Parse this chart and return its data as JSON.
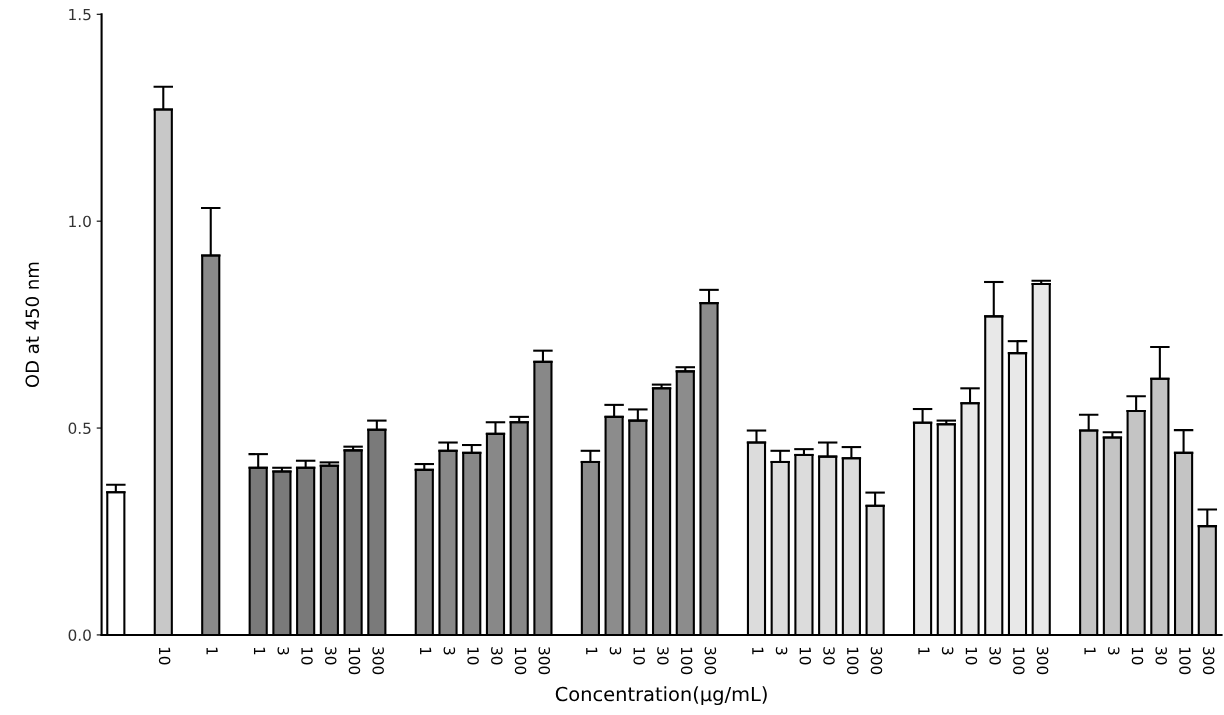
{
  "chart_data": {
    "type": "bar",
    "xlabel": "Concentration(μg/mL)",
    "ylabel": "OD at 450 nm",
    "categories": [
      null,
      null,
      "10",
      null,
      "1",
      null,
      "1",
      "3",
      "10",
      "30",
      "100",
      "300",
      null,
      "1",
      "3",
      "10",
      "30",
      "100",
      "300",
      null,
      "1",
      "3",
      "10",
      "30",
      "100",
      "300",
      null,
      "1",
      "3",
      "10",
      "30",
      "100",
      "300",
      null,
      "1",
      "3",
      "10",
      "30",
      "100",
      "300",
      null,
      "1",
      "3",
      "10",
      "30",
      "100",
      "300"
    ],
    "values": [
      0.345,
      null,
      1.27,
      null,
      0.917,
      null,
      0.404,
      0.395,
      0.404,
      0.409,
      0.446,
      0.496,
      null,
      0.399,
      0.445,
      0.44,
      0.486,
      0.514,
      0.66,
      null,
      0.418,
      0.527,
      0.518,
      0.596,
      0.637,
      0.802,
      null,
      0.465,
      0.418,
      0.435,
      0.431,
      0.427,
      0.312,
      null,
      0.513,
      0.509,
      0.56,
      0.77,
      0.681,
      0.848,
      null,
      0.494,
      0.477,
      0.541,
      0.619,
      0.44,
      0.263
    ],
    "errors": [
      [
        0.345,
        0.363
      ],
      null,
      [
        1.27,
        1.325
      ],
      null,
      [
        0.917,
        1.032
      ],
      null,
      [
        0.404,
        0.437
      ],
      [
        0.395,
        0.404
      ],
      [
        0.404,
        0.421
      ],
      [
        0.409,
        0.417
      ],
      [
        0.446,
        0.455
      ],
      [
        0.496,
        0.518
      ],
      null,
      [
        0.399,
        0.413
      ],
      [
        0.445,
        0.465
      ],
      [
        0.44,
        0.459
      ],
      [
        0.486,
        0.514
      ],
      [
        0.514,
        0.527
      ],
      [
        0.66,
        0.687
      ],
      null,
      [
        0.418,
        0.445
      ],
      [
        0.527,
        0.556
      ],
      [
        0.518,
        0.545
      ],
      [
        0.596,
        0.605
      ],
      [
        0.637,
        0.647
      ],
      [
        0.802,
        0.834
      ],
      null,
      [
        0.465,
        0.494
      ],
      [
        0.418,
        0.445
      ],
      [
        0.435,
        0.449
      ],
      [
        0.431,
        0.465
      ],
      [
        0.427,
        0.454
      ],
      [
        0.312,
        0.344
      ],
      null,
      [
        0.513,
        0.546
      ],
      [
        0.509,
        0.518
      ],
      [
        0.56,
        0.596
      ],
      [
        0.77,
        0.853
      ],
      [
        0.681,
        0.71
      ],
      [
        0.848,
        0.856
      ],
      null,
      [
        0.494,
        0.532
      ],
      [
        0.477,
        0.49
      ],
      [
        0.541,
        0.577
      ],
      [
        0.619,
        0.696
      ],
      [
        0.44,
        0.495
      ],
      [
        0.263,
        0.303
      ]
    ],
    "colors": [
      "#ffffff",
      null,
      "#c8c8c8",
      null,
      "#8a8a8a",
      null,
      "#7a7a7a",
      "#7a7a7a",
      "#7a7a7a",
      "#7a7a7a",
      "#7a7a7a",
      "#7a7a7a",
      null,
      "#888888",
      "#888888",
      "#888888",
      "#888888",
      "#888888",
      "#888888",
      null,
      "#8c8c8c",
      "#8c8c8c",
      "#8c8c8c",
      "#8c8c8c",
      "#8c8c8c",
      "#8c8c8c",
      null,
      "#dcdcdc",
      "#dcdcdc",
      "#dcdcdc",
      "#dcdcdc",
      "#dcdcdc",
      "#dcdcdc",
      null,
      "#e8e8e8",
      "#e8e8e8",
      "#e8e8e8",
      "#e8e8e8",
      "#e8e8e8",
      "#e8e8e8",
      null,
      "#c4c4c4",
      "#c4c4c4",
      "#c4c4c4",
      "#c4c4c4",
      "#c4c4c4",
      "#c4c4c4"
    ],
    "ylim": [
      0,
      1.5
    ],
    "yticks": [
      {
        "value": 0,
        "label": "0.0"
      },
      {
        "value": 0.5,
        "label": "0.5"
      },
      {
        "value": 1.0,
        "label": "1.0"
      },
      {
        "value": 1.5,
        "label": "1.5"
      }
    ],
    "grid": false,
    "legend": false
  }
}
